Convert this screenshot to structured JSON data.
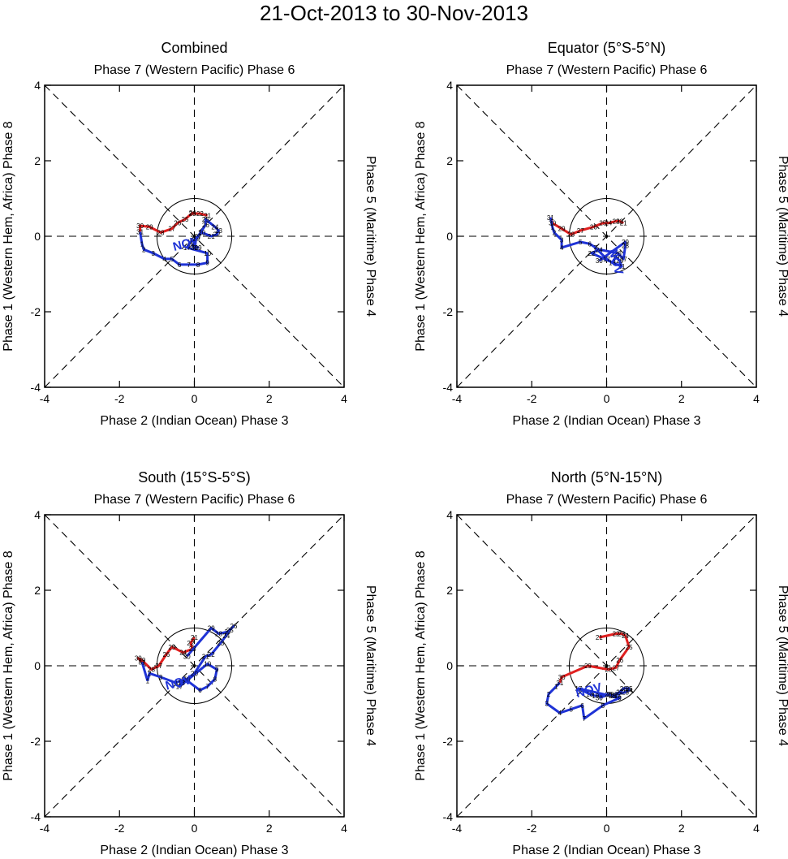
{
  "title": "21-Oct-2013 to 30-Nov-2013",
  "colors": {
    "october": "#e02020",
    "november": "#1f33d6",
    "axis": "#000000"
  },
  "chart_data": [
    {
      "type": "line",
      "panel": "combined",
      "title": "Combined",
      "top_label": "Phase 7 (Western Pacific) Phase 6",
      "bottom_label": "Phase 2 (Indian Ocean) Phase 3",
      "left_label": "Phase 1 (Western Hem, Africa) Phase 8",
      "right_label": "Phase 5 (Maritime) Phase 4",
      "xlim": [
        -4,
        4
      ],
      "ylim": [
        -4,
        4
      ],
      "ticks": [
        "-4",
        "-2",
        "0",
        "2",
        "4"
      ],
      "month_label": "NOV",
      "series": [
        {
          "name": "Oct",
          "color_key": "october",
          "points": [
            {
              "d": "21",
              "x": 0.35,
              "y": 0.55
            },
            {
              "d": "22",
              "x": 0.15,
              "y": 0.6
            },
            {
              "d": "23",
              "x": -0.05,
              "y": 0.6
            },
            {
              "d": "24",
              "x": -0.05,
              "y": 0.62
            },
            {
              "d": "25",
              "x": -0.25,
              "y": 0.45
            },
            {
              "d": "26",
              "x": -0.45,
              "y": 0.35
            },
            {
              "d": "27",
              "x": -0.6,
              "y": 0.2
            },
            {
              "d": "28",
              "x": -0.9,
              "y": 0.1
            },
            {
              "d": "29",
              "x": -1.2,
              "y": 0.25
            },
            {
              "d": "30",
              "x": -1.45,
              "y": 0.28
            },
            {
              "d": "31",
              "x": -1.45,
              "y": 0.12
            }
          ]
        },
        {
          "name": "Nov",
          "color_key": "november",
          "points": [
            {
              "d": "1",
              "x": -1.4,
              "y": -0.2
            },
            {
              "d": "2",
              "x": -1.35,
              "y": -0.35
            },
            {
              "d": "3",
              "x": -1.1,
              "y": -0.45
            },
            {
              "d": "4",
              "x": -0.8,
              "y": -0.6
            },
            {
              "d": "5",
              "x": -0.6,
              "y": -0.6
            },
            {
              "d": "6",
              "x": -0.4,
              "y": -0.75
            },
            {
              "d": "7",
              "x": -0.15,
              "y": -0.75
            },
            {
              "d": "8",
              "x": 0.1,
              "y": -0.75
            },
            {
              "d": "9",
              "x": 0.35,
              "y": -0.7
            },
            {
              "d": "10",
              "x": 0.35,
              "y": -0.45
            },
            {
              "d": "17",
              "x": -0.2,
              "y": -0.3
            },
            {
              "d": "18",
              "x": -0.1,
              "y": -0.15
            },
            {
              "d": "19",
              "x": 0.05,
              "y": -0.05
            },
            {
              "d": "20",
              "x": 0.2,
              "y": 0.1
            },
            {
              "d": "21",
              "x": 0.45,
              "y": 0.0
            },
            {
              "d": "22",
              "x": 0.6,
              "y": 0.05
            },
            {
              "d": "23",
              "x": 0.65,
              "y": 0.15
            },
            {
              "d": "24",
              "x": 0.55,
              "y": 0.25
            },
            {
              "d": "25",
              "x": 0.3,
              "y": 0.45
            },
            {
              "d": "26",
              "x": 0.3,
              "y": 0.3
            },
            {
              "d": "27",
              "x": 0.1,
              "y": 0.0
            },
            {
              "d": "28",
              "x": -0.05,
              "y": -0.25
            },
            {
              "d": "29",
              "x": 0.1,
              "y": -0.3
            },
            {
              "d": "30",
              "x": 0.0,
              "y": -0.3
            }
          ]
        }
      ]
    },
    {
      "type": "line",
      "panel": "equator",
      "title": "Equator (5°S-5°N)",
      "top_label": "Phase 7 (Western Pacific) Phase 6",
      "bottom_label": "Phase 2 (Indian Ocean) Phase 3",
      "left_label": "Phase 1 (Western Hem, Africa) Phase 8",
      "right_label": "Phase 5 (Maritime) Phase 4",
      "xlim": [
        -4,
        4
      ],
      "ylim": [
        -4,
        4
      ],
      "ticks": [
        "-4",
        "-2",
        "0",
        "2",
        "4"
      ],
      "month_label": "NOV",
      "series": [
        {
          "name": "Oct",
          "color_key": "october",
          "points": [
            {
              "d": "21",
              "x": 0.45,
              "y": 0.35
            },
            {
              "d": "22",
              "x": 0.35,
              "y": 0.4
            },
            {
              "d": "23",
              "x": 0.25,
              "y": 0.4
            },
            {
              "d": "24",
              "x": 0.05,
              "y": 0.35
            },
            {
              "d": "25",
              "x": -0.1,
              "y": 0.35
            },
            {
              "d": "26",
              "x": -0.35,
              "y": 0.25
            },
            {
              "d": "27",
              "x": -0.7,
              "y": 0.15
            },
            {
              "d": "28",
              "x": -0.95,
              "y": 0.05
            },
            {
              "d": "29",
              "x": -1.2,
              "y": 0.2
            },
            {
              "d": "30",
              "x": -1.45,
              "y": 0.35
            },
            {
              "d": "31",
              "x": -1.5,
              "y": 0.5
            }
          ]
        },
        {
          "name": "Nov",
          "color_key": "november",
          "points": [
            {
              "d": "1",
              "x": -1.45,
              "y": 0.25
            },
            {
              "d": "2",
              "x": -1.4,
              "y": 0.1
            },
            {
              "d": "3",
              "x": -1.2,
              "y": -0.1
            },
            {
              "d": "4",
              "x": -1.2,
              "y": -0.3
            },
            {
              "d": "5",
              "x": -0.7,
              "y": -0.15
            },
            {
              "d": "6",
              "x": -0.45,
              "y": -0.2
            },
            {
              "d": "7",
              "x": -0.3,
              "y": -0.3
            },
            {
              "d": "17",
              "x": 0.0,
              "y": -0.6
            },
            {
              "d": "18",
              "x": 0.15,
              "y": -0.7
            },
            {
              "d": "19",
              "x": 0.25,
              "y": -0.55
            },
            {
              "d": "20",
              "x": 0.35,
              "y": -0.65
            },
            {
              "d": "21",
              "x": 0.4,
              "y": -0.8
            },
            {
              "d": "22",
              "x": -0.4,
              "y": -0.45
            },
            {
              "d": "24",
              "x": -0.2,
              "y": -0.35
            },
            {
              "d": "26",
              "x": 0.3,
              "y": -0.45
            },
            {
              "d": "27",
              "x": 0.45,
              "y": -0.6
            },
            {
              "d": "28",
              "x": 0.5,
              "y": -0.25
            },
            {
              "d": "29",
              "x": 0.5,
              "y": -0.15
            },
            {
              "d": "30",
              "x": -0.2,
              "y": -0.65
            }
          ]
        }
      ]
    },
    {
      "type": "line",
      "panel": "south",
      "title": "South (15°S-5°S)",
      "top_label": "Phase 7 (Western Pacific) Phase 6",
      "bottom_label": "Phase 2 (Indian Ocean) Phase 3",
      "left_label": "Phase 1 (Western Hem, Africa) Phase 8",
      "right_label": "Phase 5 (Maritime) Phase 4",
      "xlim": [
        -4,
        4
      ],
      "ylim": [
        -4,
        4
      ],
      "ticks": [
        "-4",
        "-2",
        "0",
        "2",
        "4"
      ],
      "month_label": "NOV",
      "series": [
        {
          "name": "Oct",
          "color_key": "october",
          "points": [
            {
              "d": "21",
              "x": 0.0,
              "y": 0.75
            },
            {
              "d": "22",
              "x": -0.1,
              "y": 0.6
            },
            {
              "d": "23",
              "x": -0.05,
              "y": 0.45
            },
            {
              "d": "24",
              "x": -0.3,
              "y": 0.35
            },
            {
              "d": "25",
              "x": -0.6,
              "y": 0.5
            },
            {
              "d": "26",
              "x": -0.75,
              "y": 0.3
            },
            {
              "d": "27",
              "x": -0.95,
              "y": 0.0
            },
            {
              "d": "28",
              "x": -1.15,
              "y": -0.1
            },
            {
              "d": "29",
              "x": -1.4,
              "y": 0.15
            },
            {
              "d": "30",
              "x": -1.5,
              "y": 0.2
            },
            {
              "d": "31",
              "x": -1.4,
              "y": 0.1
            }
          ]
        },
        {
          "name": "Nov",
          "color_key": "november",
          "points": [
            {
              "d": "1",
              "x": -1.25,
              "y": -0.4
            },
            {
              "d": "2",
              "x": -1.2,
              "y": -0.2
            },
            {
              "d": "3",
              "x": -0.9,
              "y": -0.3
            },
            {
              "d": "4",
              "x": -0.5,
              "y": -0.45
            },
            {
              "d": "5",
              "x": -0.25,
              "y": -0.35
            },
            {
              "d": "6",
              "x": 0.15,
              "y": -0.65
            },
            {
              "d": "7",
              "x": 0.35,
              "y": -0.55
            },
            {
              "d": "8",
              "x": 0.55,
              "y": -0.35
            },
            {
              "d": "9",
              "x": 0.6,
              "y": -0.1
            },
            {
              "d": "10",
              "x": 0.35,
              "y": 0.05
            },
            {
              "d": "17",
              "x": -0.4,
              "y": -0.55
            },
            {
              "d": "18",
              "x": -0.35,
              "y": -0.45
            },
            {
              "d": "19",
              "x": -0.2,
              "y": -0.35
            },
            {
              "d": "20",
              "x": 0.0,
              "y": -0.2
            },
            {
              "d": "21",
              "x": 0.3,
              "y": 0.25
            },
            {
              "d": "22",
              "x": 0.45,
              "y": 0.3
            },
            {
              "d": "23",
              "x": 0.7,
              "y": 0.6
            },
            {
              "d": "24",
              "x": 0.85,
              "y": 0.8
            },
            {
              "d": "25",
              "x": 0.95,
              "y": 0.95
            },
            {
              "d": "26",
              "x": 1.05,
              "y": 1.05
            },
            {
              "d": "27",
              "x": 0.9,
              "y": 0.9
            },
            {
              "d": "28",
              "x": 0.65,
              "y": 0.85
            },
            {
              "d": "29",
              "x": 0.45,
              "y": 1.0
            },
            {
              "d": "30",
              "x": -0.2,
              "y": 0.25
            }
          ]
        }
      ]
    },
    {
      "type": "line",
      "panel": "north",
      "title": "North (5°N-15°N)",
      "top_label": "Phase 7 (Western Pacific) Phase 6",
      "bottom_label": "Phase 2 (Indian Ocean) Phase 3",
      "left_label": "Phase 1 (Western Hem, Africa) Phase 8",
      "right_label": "Phase 5 (Maritime) Phase 4",
      "xlim": [
        -4,
        4
      ],
      "ylim": [
        -4,
        4
      ],
      "ticks": [
        "-4",
        "-2",
        "0",
        "2",
        "4"
      ],
      "month_label": "NOV",
      "series": [
        {
          "name": "Oct",
          "color_key": "october",
          "points": [
            {
              "d": "21",
              "x": -0.2,
              "y": 0.75
            },
            {
              "d": "22",
              "x": 0.25,
              "y": 0.85
            },
            {
              "d": "23",
              "x": 0.4,
              "y": 0.85
            },
            {
              "d": "24",
              "x": 0.5,
              "y": 0.8
            },
            {
              "d": "25",
              "x": 0.6,
              "y": 0.5
            },
            {
              "d": "26",
              "x": 0.35,
              "y": 0.15
            },
            {
              "d": "27",
              "x": 0.25,
              "y": -0.05
            },
            {
              "d": "28",
              "x": 0.05,
              "y": -0.1
            },
            {
              "d": "29",
              "x": -0.5,
              "y": 0.0
            },
            {
              "d": "30",
              "x": -1.2,
              "y": -0.3
            },
            {
              "d": "31",
              "x": -1.25,
              "y": -0.45
            }
          ]
        },
        {
          "name": "Nov",
          "color_key": "november",
          "points": [
            {
              "d": "1",
              "x": -1.35,
              "y": -0.55
            },
            {
              "d": "2",
              "x": -1.55,
              "y": -0.75
            },
            {
              "d": "3",
              "x": -1.6,
              "y": -1.0
            },
            {
              "d": "4",
              "x": -1.25,
              "y": -1.25
            },
            {
              "d": "5",
              "x": -0.95,
              "y": -1.15
            },
            {
              "d": "6",
              "x": -0.65,
              "y": -1.05
            },
            {
              "d": "7",
              "x": -0.6,
              "y": -1.4
            },
            {
              "d": "8",
              "x": -0.1,
              "y": -1.05
            },
            {
              "d": "9",
              "x": 0.35,
              "y": -0.85
            },
            {
              "d": "17",
              "x": -0.75,
              "y": -0.6
            },
            {
              "d": "18",
              "x": -0.45,
              "y": -0.75
            },
            {
              "d": "19",
              "x": -0.3,
              "y": -0.8
            },
            {
              "d": "20",
              "x": 0.05,
              "y": -0.75
            },
            {
              "d": "21",
              "x": 0.2,
              "y": -0.8
            },
            {
              "d": "22",
              "x": 0.3,
              "y": -0.75
            },
            {
              "d": "23",
              "x": 0.5,
              "y": -0.7
            },
            {
              "d": "24",
              "x": 0.6,
              "y": -0.65
            },
            {
              "d": "25",
              "x": 0.6,
              "y": -0.6
            },
            {
              "d": "26",
              "x": 0.45,
              "y": -0.6
            },
            {
              "d": "27",
              "x": 0.35,
              "y": -0.7
            },
            {
              "d": "28",
              "x": 0.15,
              "y": -0.8
            },
            {
              "d": "29",
              "x": 0.1,
              "y": -0.75
            },
            {
              "d": "30",
              "x": -0.2,
              "y": -0.85
            }
          ]
        }
      ]
    }
  ]
}
